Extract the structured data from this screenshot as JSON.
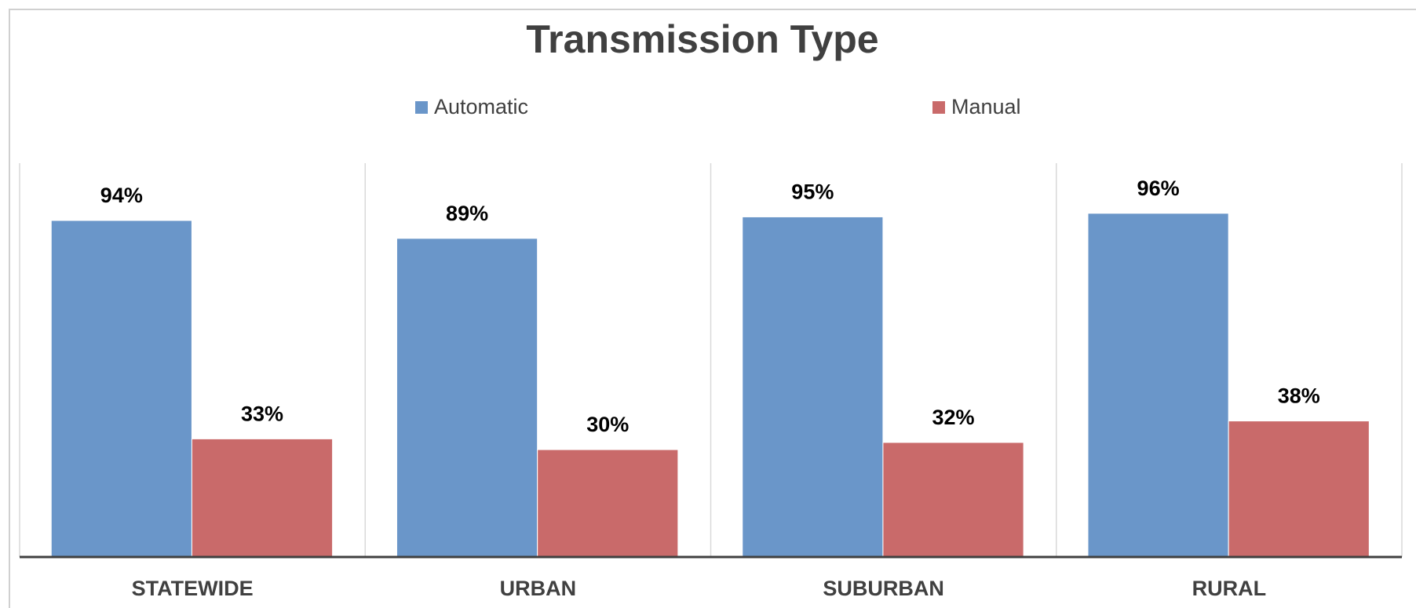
{
  "chart_data": {
    "type": "bar",
    "title": "Transmission Type",
    "categories": [
      "STATEWIDE",
      "URBAN",
      "SUBURBAN",
      "RURAL"
    ],
    "series": [
      {
        "name": "Automatic",
        "color": "#6a96c9",
        "values": [
          94,
          89,
          95,
          96
        ],
        "value_labels": [
          "94%",
          "89%",
          "95%",
          "96%"
        ]
      },
      {
        "name": "Manual",
        "color": "#c96a6a",
        "values": [
          33,
          30,
          32,
          38
        ],
        "value_labels": [
          "33%",
          "30%",
          "32%",
          "38%"
        ]
      }
    ],
    "ylim": [
      0,
      110
    ],
    "legend": "top"
  }
}
